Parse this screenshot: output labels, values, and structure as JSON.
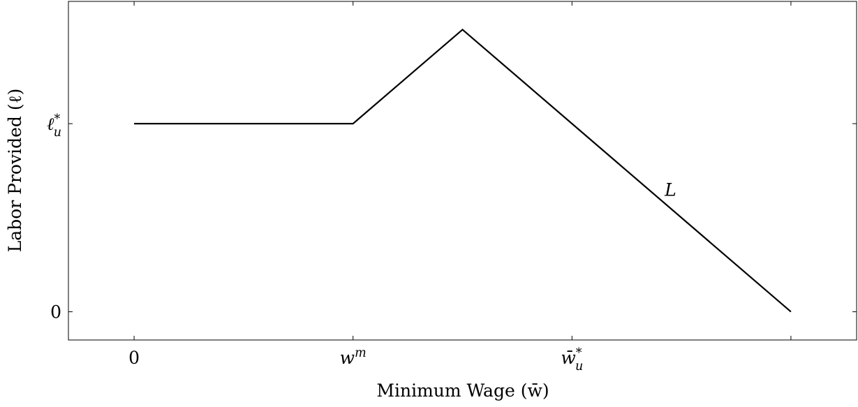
{
  "chart_data": {
    "type": "line",
    "xlabel": "Minimum Wage (w̄)",
    "ylabel": "Labor Provided (ℓ)",
    "x_ticks": [
      {
        "value": 0,
        "label": "0"
      },
      {
        "value": 1,
        "label": "w^m"
      },
      {
        "value": 2,
        "label": "w̄*_u"
      },
      {
        "value": 3,
        "label": ""
      }
    ],
    "y_ticks": [
      {
        "value": 0,
        "label": "0"
      },
      {
        "value": 1,
        "label": "ℓ*_u"
      }
    ],
    "xlim": [
      -0.3,
      3.3
    ],
    "ylim": [
      -0.15,
      1.65
    ],
    "series": [
      {
        "name": "L",
        "x": [
          0,
          1,
          1.5,
          3
        ],
        "y": [
          1,
          1,
          1.5,
          0
        ]
      }
    ],
    "annotations": [
      {
        "text": "L",
        "x": 2.45,
        "y": 0.65
      }
    ],
    "grid": false,
    "legend": "none"
  }
}
